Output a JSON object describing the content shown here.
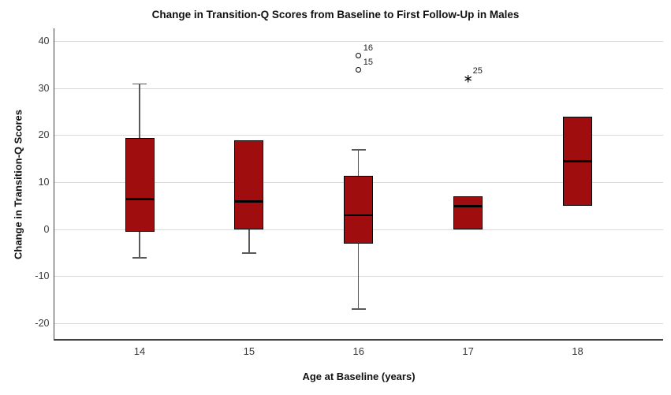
{
  "chart_data": {
    "type": "boxplot",
    "title": "Change in Transition-Q Scores from Baseline to First Follow-Up in Males",
    "xlabel": "Age at Baseline (years)",
    "ylabel": "Change in Transition-Q Scores",
    "categories": [
      "14",
      "15",
      "16",
      "17",
      "18"
    ],
    "yticks": [
      40,
      30,
      20,
      10,
      0,
      -10,
      -20
    ],
    "ylim": [
      -23.5,
      42.8
    ],
    "grid": "horizontal",
    "legend": "none",
    "series": [
      {
        "category": "14",
        "whisker_low": -6,
        "q1": -0.5,
        "median": 6.5,
        "q3": 19.5,
        "whisker_high": 31
      },
      {
        "category": "15",
        "whisker_low": -5,
        "q1": 0,
        "median": 6,
        "q3": 19,
        "whisker_high": 19
      },
      {
        "category": "16",
        "whisker_low": -17,
        "q1": -3,
        "median": 3,
        "q3": 11.5,
        "whisker_high": 17
      },
      {
        "category": "17",
        "whisker_low": 0,
        "q1": 0,
        "median": 5,
        "q3": 7,
        "whisker_high": 7
      },
      {
        "category": "18",
        "whisker_low": 5,
        "q1": 5,
        "median": 14.5,
        "q3": 24,
        "whisker_high": 24
      }
    ],
    "outliers": [
      {
        "category": "16",
        "value": 37,
        "case_label": "16",
        "marker": "circle"
      },
      {
        "category": "16",
        "value": 34,
        "case_label": "15",
        "marker": "circle"
      },
      {
        "category": "17",
        "value": 32,
        "case_label": "25",
        "marker": "star"
      }
    ],
    "colors": {
      "box_fill": "#9F0D0E",
      "box_border": "#000000",
      "median": "#000000",
      "whisker": "#5A5A5A",
      "gridline": "#D9D9D9",
      "axis_line": "#404040",
      "title_text": "#111111",
      "tick_text": "#3A3A3A",
      "background": "#FFFFFF"
    }
  }
}
